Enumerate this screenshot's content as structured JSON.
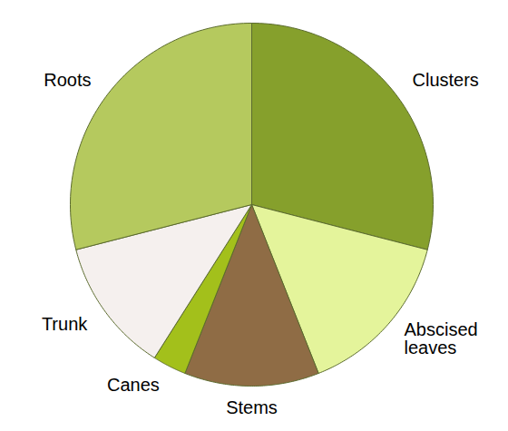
{
  "chart_data": {
    "type": "pie",
    "categories": [
      "Clusters",
      "Abscised leaves",
      "Stems",
      "Canes",
      "Trunk",
      "Roots"
    ],
    "values": [
      29,
      15,
      12,
      3,
      12,
      29
    ],
    "colors": [
      "#86a02c",
      "#e4f49b",
      "#8f6c45",
      "#a3c01b",
      "#f5f0ee",
      "#b5c95e"
    ]
  }
}
